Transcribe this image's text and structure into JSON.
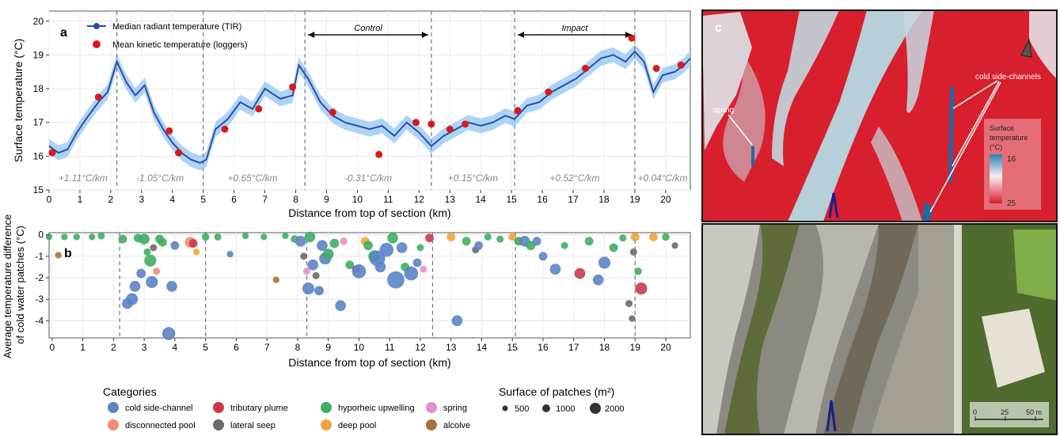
{
  "chart_data": [
    {
      "panel": "a",
      "type": "line",
      "ylabel": "Surface temperature (°C)",
      "xlabel": "Distance from top of section (km)",
      "xlim": [
        0,
        20.8
      ],
      "ylim": [
        15,
        20.3
      ],
      "xticks": [
        0,
        1,
        2,
        3,
        4,
        5,
        6,
        7,
        8,
        9,
        10,
        11,
        12,
        13,
        14,
        15,
        16,
        17,
        18,
        19,
        20
      ],
      "yticks": [
        15,
        16,
        17,
        18,
        19,
        20
      ],
      "grid": true,
      "legend_position": "top-left",
      "legend": [
        {
          "label": "Median radiant temperature (TIR)",
          "color": "#2c4fa3",
          "marker": "line"
        },
        {
          "label": "Mean kinetic temperature (loggers)",
          "color": "#d7191c",
          "marker": "point"
        }
      ],
      "series": [
        {
          "name": "Median radiant temperature (TIR)",
          "color": "#2c4fa3",
          "band_color": "#9fcdf5",
          "points": [
            [
              0,
              16.3
            ],
            [
              0.3,
              16.1
            ],
            [
              0.6,
              16.2
            ],
            [
              0.9,
              16.7
            ],
            [
              1.2,
              17.1
            ],
            [
              1.6,
              17.6
            ],
            [
              1.9,
              17.9
            ],
            [
              2.2,
              18.8
            ],
            [
              2.5,
              18.2
            ],
            [
              2.8,
              17.8
            ],
            [
              3.1,
              18.1
            ],
            [
              3.4,
              17.3
            ],
            [
              3.7,
              16.8
            ],
            [
              4.0,
              16.4
            ],
            [
              4.3,
              16.1
            ],
            [
              4.6,
              15.9
            ],
            [
              4.9,
              15.8
            ],
            [
              5.1,
              15.9
            ],
            [
              5.4,
              16.8
            ],
            [
              5.8,
              17.1
            ],
            [
              6.2,
              17.6
            ],
            [
              6.6,
              17.4
            ],
            [
              7.0,
              18.0
            ],
            [
              7.5,
              17.7
            ],
            [
              7.9,
              17.8
            ],
            [
              8.1,
              18.7
            ],
            [
              8.4,
              18.3
            ],
            [
              8.8,
              17.6
            ],
            [
              9.2,
              17.2
            ],
            [
              9.6,
              17.0
            ],
            [
              10.0,
              16.9
            ],
            [
              10.4,
              16.8
            ],
            [
              10.8,
              16.9
            ],
            [
              11.2,
              16.6
            ],
            [
              11.6,
              17.0
            ],
            [
              12.0,
              16.7
            ],
            [
              12.4,
              16.3
            ],
            [
              12.8,
              16.6
            ],
            [
              13.2,
              16.8
            ],
            [
              13.6,
              17.0
            ],
            [
              14.0,
              16.9
            ],
            [
              14.4,
              17.0
            ],
            [
              14.8,
              17.2
            ],
            [
              15.1,
              17.1
            ],
            [
              15.5,
              17.5
            ],
            [
              15.9,
              17.6
            ],
            [
              16.3,
              17.9
            ],
            [
              16.7,
              18.1
            ],
            [
              17.1,
              18.3
            ],
            [
              17.5,
              18.6
            ],
            [
              17.9,
              18.9
            ],
            [
              18.3,
              19.0
            ],
            [
              18.7,
              18.8
            ],
            [
              19.0,
              19.1
            ],
            [
              19.3,
              18.8
            ],
            [
              19.6,
              17.9
            ],
            [
              19.9,
              18.4
            ],
            [
              20.3,
              18.5
            ],
            [
              20.6,
              18.7
            ],
            [
              20.8,
              18.9
            ]
          ]
        },
        {
          "name": "Mean kinetic temperature (loggers)",
          "color": "#d7191c",
          "points": [
            [
              0.1,
              16.1
            ],
            [
              1.6,
              17.75
            ],
            [
              3.9,
              16.75
            ],
            [
              4.2,
              16.1
            ],
            [
              5.7,
              16.8
            ],
            [
              6.8,
              17.4
            ],
            [
              7.9,
              18.05
            ],
            [
              9.2,
              17.3
            ],
            [
              10.7,
              16.05
            ],
            [
              11.9,
              17.0
            ],
            [
              12.4,
              16.95
            ],
            [
              13.0,
              16.8
            ],
            [
              13.5,
              16.95
            ],
            [
              15.2,
              17.35
            ],
            [
              16.2,
              17.9
            ],
            [
              17.4,
              18.6
            ],
            [
              18.9,
              19.5
            ],
            [
              19.7,
              18.6
            ],
            [
              20.5,
              18.7
            ]
          ]
        }
      ],
      "vlines": [
        2.2,
        5.0,
        8.3,
        12.4,
        15.1,
        19.0
      ],
      "segment_annotations": [
        {
          "x": 1.1,
          "label": "+1.11°C/km"
        },
        {
          "x": 3.6,
          "label": "-1.05°C/km"
        },
        {
          "x": 6.6,
          "label": "+0.65°C/km"
        },
        {
          "x": 10.35,
          "label": "-0.31°C/km"
        },
        {
          "x": 13.75,
          "label": "+0.15°C/km"
        },
        {
          "x": 17.05,
          "label": "+0.52°C/km"
        },
        {
          "x": 19.9,
          "label": "+0.04°C/km"
        }
      ],
      "ranges": [
        {
          "label": "Control",
          "from": 8.3,
          "to": 12.4
        },
        {
          "label": "Impact",
          "from": 15.1,
          "to": 19.0
        }
      ]
    },
    {
      "panel": "b",
      "type": "scatter",
      "ylabel": "Average temperature difference of cold water patches (°C)",
      "xlabel": "Distance from top of section (km)",
      "xlim": [
        -0.1,
        20.8
      ],
      "ylim": [
        -4.8,
        0.1
      ],
      "xticks": [
        0,
        1,
        2,
        3,
        4,
        5,
        6,
        7,
        8,
        9,
        10,
        11,
        12,
        13,
        14,
        15,
        16,
        17,
        18,
        19,
        20
      ],
      "yticks": [
        0,
        -1,
        -2,
        -3,
        -4
      ],
      "grid": true,
      "vlines": [
        2.2,
        5.0,
        8.3,
        12.4,
        15.1,
        19.0
      ],
      "categories": [
        {
          "key": "cold",
          "label": "cold side-channel",
          "color": "#5b84c4"
        },
        {
          "key": "trib",
          "label": "tributary plume",
          "color": "#c9384c"
        },
        {
          "key": "hypo",
          "label": "hyporheic upwelling",
          "color": "#3fae63"
        },
        {
          "key": "spring",
          "label": "spring",
          "color": "#e58fc8"
        },
        {
          "key": "disc",
          "label": "disconnected pool",
          "color": "#f28c73"
        },
        {
          "key": "lat",
          "label": "lateral seep",
          "color": "#6b6b6b"
        },
        {
          "key": "deep",
          "label": "deep pool",
          "color": "#f0a33a"
        },
        {
          "key": "alc",
          "label": "alcolve",
          "color": "#a8743a"
        }
      ],
      "points": [
        {
          "x": -0.1,
          "y": -0.1,
          "c": "hypo",
          "s": 60
        },
        {
          "x": 0.2,
          "y": -0.95,
          "c": "alc",
          "s": 60
        },
        {
          "x": 0.4,
          "y": -0.1,
          "c": "hypo",
          "s": 60
        },
        {
          "x": 0.8,
          "y": -0.1,
          "c": "hypo",
          "s": 60
        },
        {
          "x": 1.3,
          "y": -0.1,
          "c": "hypo",
          "s": 60
        },
        {
          "x": 1.6,
          "y": -0.05,
          "c": "hypo",
          "s": 80
        },
        {
          "x": 2.3,
          "y": -0.2,
          "c": "hypo",
          "s": 150
        },
        {
          "x": 2.45,
          "y": -3.2,
          "c": "cold",
          "s": 300
        },
        {
          "x": 2.6,
          "y": -3.0,
          "c": "cold",
          "s": 400
        },
        {
          "x": 2.7,
          "y": -2.4,
          "c": "cold",
          "s": 300
        },
        {
          "x": 2.8,
          "y": -0.15,
          "c": "hypo",
          "s": 150
        },
        {
          "x": 2.9,
          "y": -1.8,
          "c": "cold",
          "s": 200
        },
        {
          "x": 3.0,
          "y": -0.2,
          "c": "hypo",
          "s": 300
        },
        {
          "x": 3.1,
          "y": -0.8,
          "c": "hypo",
          "s": 80
        },
        {
          "x": 3.2,
          "y": -1.2,
          "c": "hypo",
          "s": 400
        },
        {
          "x": 3.25,
          "y": -2.2,
          "c": "cold",
          "s": 400
        },
        {
          "x": 3.3,
          "y": -0.6,
          "c": "lat",
          "s": 80
        },
        {
          "x": 3.4,
          "y": -1.7,
          "c": "disc",
          "s": 80
        },
        {
          "x": 3.5,
          "y": -0.2,
          "c": "hypo",
          "s": 150
        },
        {
          "x": 3.6,
          "y": -0.35,
          "c": "hypo",
          "s": 150
        },
        {
          "x": 3.8,
          "y": -4.6,
          "c": "cold",
          "s": 500
        },
        {
          "x": 3.9,
          "y": -2.4,
          "c": "cold",
          "s": 300
        },
        {
          "x": 4.0,
          "y": -0.5,
          "c": "cold",
          "s": 150
        },
        {
          "x": 4.5,
          "y": -0.35,
          "c": "disc",
          "s": 300
        },
        {
          "x": 4.6,
          "y": -0.4,
          "c": "trib",
          "s": 150
        },
        {
          "x": 4.7,
          "y": -0.8,
          "c": "deep",
          "s": 60
        },
        {
          "x": 5.0,
          "y": -0.1,
          "c": "hypo",
          "s": 100
        },
        {
          "x": 5.4,
          "y": -0.1,
          "c": "hypo",
          "s": 80
        },
        {
          "x": 5.8,
          "y": -0.9,
          "c": "cold",
          "s": 60
        },
        {
          "x": 6.3,
          "y": -0.05,
          "c": "hypo",
          "s": 60
        },
        {
          "x": 6.9,
          "y": -0.1,
          "c": "hypo",
          "s": 60
        },
        {
          "x": 7.3,
          "y": -2.1,
          "c": "alc",
          "s": 60
        },
        {
          "x": 7.6,
          "y": -0.05,
          "c": "hypo",
          "s": 60
        },
        {
          "x": 7.9,
          "y": -0.2,
          "c": "hypo",
          "s": 100
        },
        {
          "x": 8.1,
          "y": -0.3,
          "c": "cold",
          "s": 300
        },
        {
          "x": 8.2,
          "y": -1.0,
          "c": "lat",
          "s": 80
        },
        {
          "x": 8.3,
          "y": -1.7,
          "c": "spring",
          "s": 80
        },
        {
          "x": 8.35,
          "y": -2.5,
          "c": "cold",
          "s": 400
        },
        {
          "x": 8.4,
          "y": -0.1,
          "c": "hypo",
          "s": 300
        },
        {
          "x": 8.5,
          "y": -1.4,
          "c": "cold",
          "s": 300
        },
        {
          "x": 8.6,
          "y": -1.9,
          "c": "lat",
          "s": 80
        },
        {
          "x": 8.7,
          "y": -2.6,
          "c": "cold",
          "s": 200
        },
        {
          "x": 8.8,
          "y": -0.5,
          "c": "cold",
          "s": 300
        },
        {
          "x": 8.9,
          "y": -1.1,
          "c": "cold",
          "s": 400
        },
        {
          "x": 9.0,
          "y": -0.9,
          "c": "hypo",
          "s": 300
        },
        {
          "x": 9.2,
          "y": -0.4,
          "c": "hypo",
          "s": 200
        },
        {
          "x": 9.4,
          "y": -3.3,
          "c": "cold",
          "s": 300
        },
        {
          "x": 9.5,
          "y": -0.3,
          "c": "spring",
          "s": 100
        },
        {
          "x": 9.7,
          "y": -1.4,
          "c": "hypo",
          "s": 150
        },
        {
          "x": 9.9,
          "y": -1.6,
          "c": "trib",
          "s": 100
        },
        {
          "x": 10.0,
          "y": -1.7,
          "c": "cold",
          "s": 600
        },
        {
          "x": 10.2,
          "y": -0.3,
          "c": "deep",
          "s": 150
        },
        {
          "x": 10.3,
          "y": -0.5,
          "c": "hypo",
          "s": 200
        },
        {
          "x": 10.5,
          "y": -1.0,
          "c": "hypo",
          "s": 400
        },
        {
          "x": 10.6,
          "y": -1.1,
          "c": "cold",
          "s": 800
        },
        {
          "x": 10.7,
          "y": -1.5,
          "c": "cold",
          "s": 300
        },
        {
          "x": 10.9,
          "y": -0.7,
          "c": "cold",
          "s": 600
        },
        {
          "x": 11.1,
          "y": -0.15,
          "c": "hypo",
          "s": 300
        },
        {
          "x": 11.2,
          "y": -2.1,
          "c": "cold",
          "s": 1000
        },
        {
          "x": 11.4,
          "y": -0.6,
          "c": "cold",
          "s": 300
        },
        {
          "x": 11.5,
          "y": -1.5,
          "c": "hypo",
          "s": 150
        },
        {
          "x": 11.7,
          "y": -1.8,
          "c": "cold",
          "s": 600
        },
        {
          "x": 11.9,
          "y": -1.3,
          "c": "cold",
          "s": 150
        },
        {
          "x": 12.0,
          "y": -0.6,
          "c": "hypo",
          "s": 80
        },
        {
          "x": 12.3,
          "y": -0.15,
          "c": "trib",
          "s": 150
        },
        {
          "x": 12.1,
          "y": -1.6,
          "c": "spring",
          "s": 80
        },
        {
          "x": 13.0,
          "y": -0.1,
          "c": "deep",
          "s": 150
        },
        {
          "x": 13.2,
          "y": -4.0,
          "c": "cold",
          "s": 300
        },
        {
          "x": 13.5,
          "y": -0.3,
          "c": "hypo",
          "s": 150
        },
        {
          "x": 13.8,
          "y": -0.7,
          "c": "lat",
          "s": 80
        },
        {
          "x": 13.9,
          "y": -0.5,
          "c": "cold",
          "s": 150
        },
        {
          "x": 14.2,
          "y": -0.1,
          "c": "hypo",
          "s": 80
        },
        {
          "x": 14.6,
          "y": -0.2,
          "c": "hypo",
          "s": 80
        },
        {
          "x": 15.0,
          "y": -0.1,
          "c": "deep",
          "s": 100
        },
        {
          "x": 15.2,
          "y": -0.3,
          "c": "hypo",
          "s": 150
        },
        {
          "x": 15.4,
          "y": -0.3,
          "c": "cold",
          "s": 300
        },
        {
          "x": 15.6,
          "y": -0.5,
          "c": "hypo",
          "s": 200
        },
        {
          "x": 15.8,
          "y": -0.3,
          "c": "cold",
          "s": 150
        },
        {
          "x": 16.0,
          "y": -1.0,
          "c": "cold",
          "s": 150
        },
        {
          "x": 16.4,
          "y": -1.6,
          "c": "cold",
          "s": 300
        },
        {
          "x": 16.7,
          "y": -0.5,
          "c": "hypo",
          "s": 80
        },
        {
          "x": 17.2,
          "y": -1.8,
          "c": "trib",
          "s": 300
        },
        {
          "x": 17.5,
          "y": -0.3,
          "c": "hypo",
          "s": 150
        },
        {
          "x": 17.8,
          "y": -2.1,
          "c": "cold",
          "s": 300
        },
        {
          "x": 18.0,
          "y": -1.3,
          "c": "cold",
          "s": 400
        },
        {
          "x": 18.3,
          "y": -0.6,
          "c": "hypo",
          "s": 150
        },
        {
          "x": 18.6,
          "y": -0.15,
          "c": "hypo",
          "s": 80
        },
        {
          "x": 18.8,
          "y": -3.2,
          "c": "lat",
          "s": 80
        },
        {
          "x": 18.9,
          "y": -3.9,
          "c": "lat",
          "s": 60
        },
        {
          "x": 18.95,
          "y": -0.8,
          "c": "lat",
          "s": 80
        },
        {
          "x": 19.0,
          "y": -0.1,
          "c": "deep",
          "s": 150
        },
        {
          "x": 19.1,
          "y": -1.7,
          "c": "hypo",
          "s": 100
        },
        {
          "x": 19.2,
          "y": -2.5,
          "c": "trib",
          "s": 400
        },
        {
          "x": 19.6,
          "y": -0.1,
          "c": "deep",
          "s": 150
        },
        {
          "x": 20.0,
          "y": -0.1,
          "c": "hypo",
          "s": 100
        },
        {
          "x": 20.3,
          "y": -0.5,
          "c": "lat",
          "s": 60
        }
      ]
    }
  ],
  "panel_labels": {
    "a": "a",
    "b": "b",
    "c": "c"
  },
  "legend_bottom": {
    "categories_title": "Categories",
    "size_title": "Surface of patches (m²)",
    "sizes": [
      500,
      1000,
      2000
    ]
  },
  "thermal_map": {
    "spring_label": "spring",
    "cold_label": "cold side-channels",
    "scale_title": "Surface temperature (°C)",
    "scale_max": "16",
    "scale_min": "25",
    "colors": {
      "warm": "#d81f2e",
      "cool": "#b9d3dd",
      "north_arrow": "#555555",
      "flow_arrow": "#1b1e8c"
    }
  },
  "ortho_map": {
    "scale_ticks": [
      "0",
      "25",
      "50 m"
    ]
  }
}
